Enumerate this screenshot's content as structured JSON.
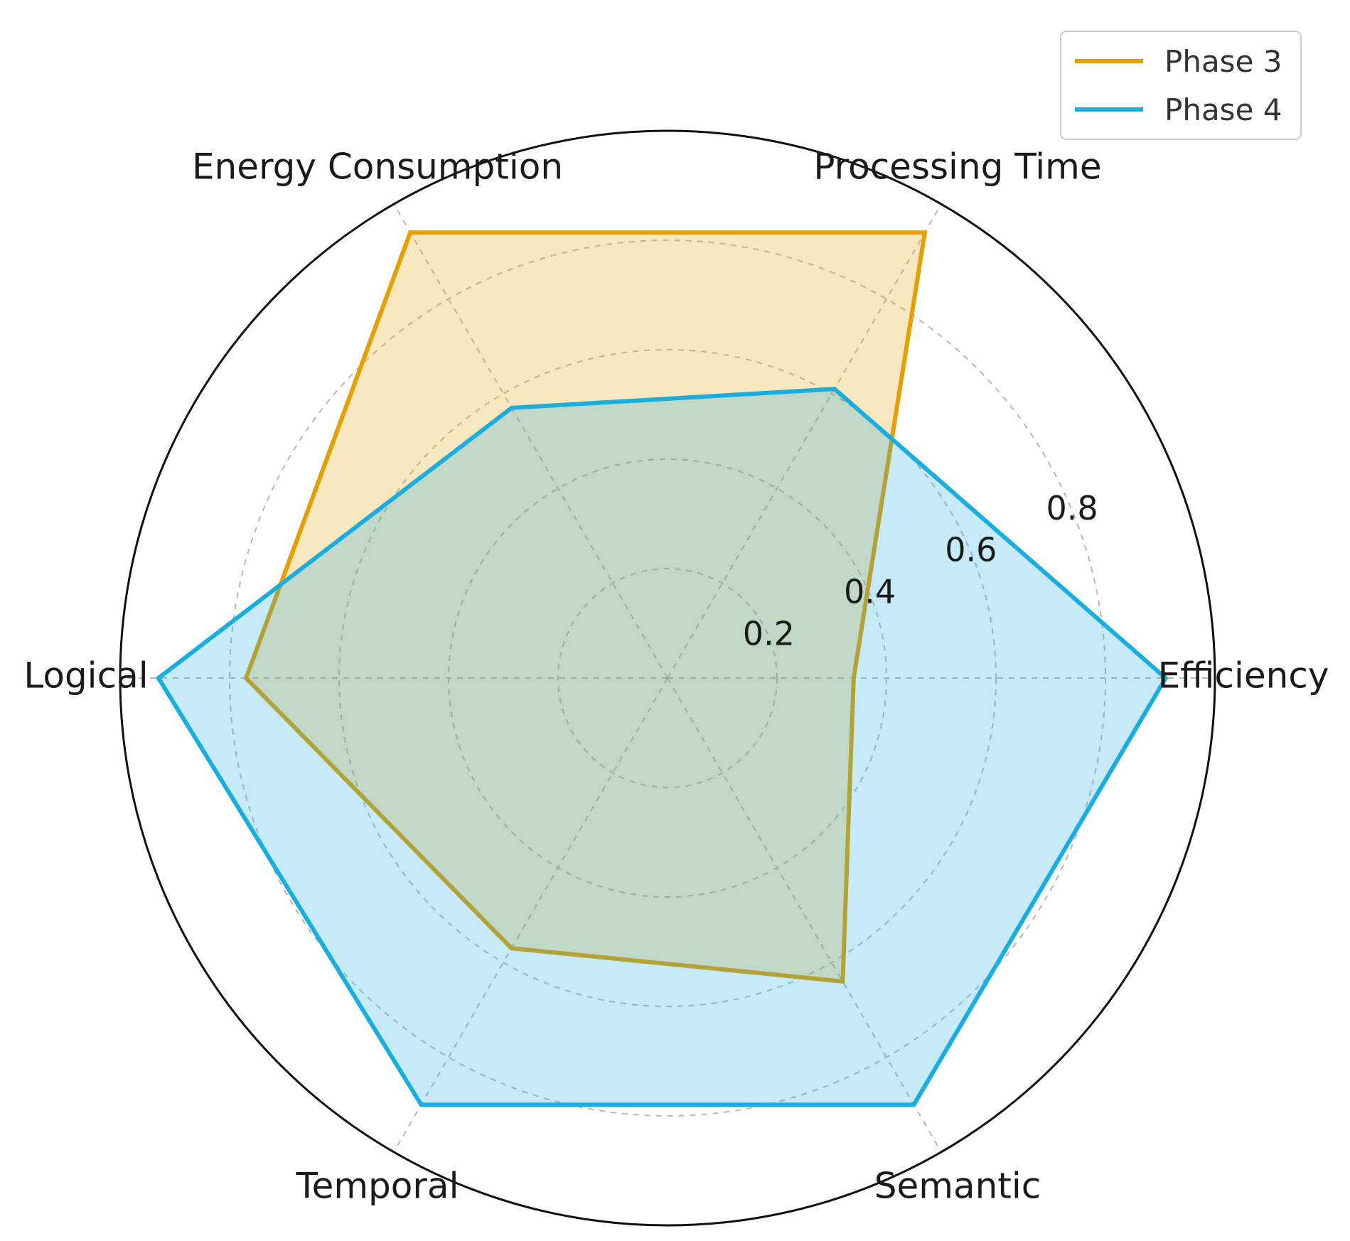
{
  "chart_data": {
    "type": "radar",
    "categories": [
      "Efficiency",
      "Processing Time",
      "Energy Consumption",
      "Logical",
      "Temporal",
      "Semantic"
    ],
    "series": [
      {
        "name": "Phase 3",
        "color": "#E69F00",
        "values": [
          0.34,
          0.94,
          0.94,
          0.77,
          0.57,
          0.64
        ]
      },
      {
        "name": "Phase 4",
        "color": "#1AADE0",
        "values": [
          0.91,
          0.61,
          0.57,
          0.93,
          0.9,
          0.9
        ]
      }
    ],
    "radial_ticks": [
      "0.2",
      "0.4",
      "0.6",
      "0.8"
    ],
    "radial_tick_values": [
      0.2,
      0.4,
      0.6,
      0.8
    ],
    "rlim": [
      0,
      1
    ],
    "grid": true,
    "legend_position": "top-right"
  }
}
